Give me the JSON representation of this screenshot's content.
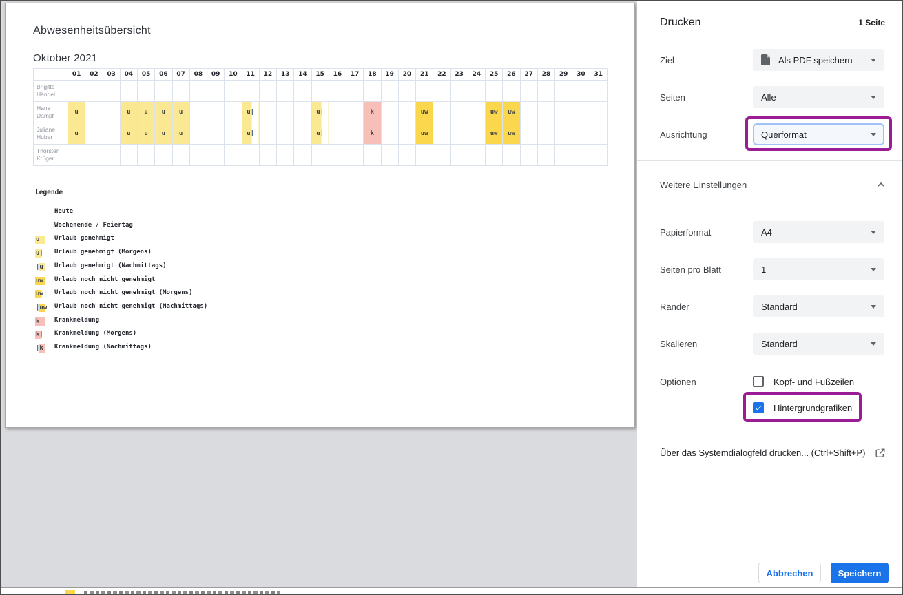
{
  "preview": {
    "title": "Abwesenheitsübersicht",
    "month_title": "Oktober 2021",
    "table": {
      "days": [
        "01",
        "02",
        "03",
        "04",
        "05",
        "06",
        "07",
        "08",
        "09",
        "10",
        "11",
        "12",
        "13",
        "14",
        "15",
        "16",
        "17",
        "18",
        "19",
        "20",
        "21",
        "22",
        "23",
        "24",
        "25",
        "26",
        "27",
        "28",
        "29",
        "30",
        "31"
      ],
      "rows": [
        {
          "name": "Brigitte Händel",
          "cells": {}
        },
        {
          "name": "Hans Dampf",
          "cells": {
            "01": {
              "mark": "u",
              "kind": "u",
              "fill": "full"
            },
            "04": {
              "mark": "u",
              "kind": "u",
              "fill": "full"
            },
            "05": {
              "mark": "u",
              "kind": "u",
              "fill": "full"
            },
            "06": {
              "mark": "u",
              "kind": "u",
              "fill": "full"
            },
            "07": {
              "mark": "u",
              "kind": "u",
              "fill": "full"
            },
            "11": {
              "mark": "u|",
              "kind": "u",
              "fill": "left"
            },
            "15": {
              "mark": "u|",
              "kind": "u",
              "fill": "left"
            },
            "18": {
              "mark": "k",
              "kind": "k",
              "fill": "full"
            },
            "21": {
              "mark": "uw",
              "kind": "uw",
              "fill": "full"
            },
            "25": {
              "mark": "uw",
              "kind": "uw",
              "fill": "full"
            },
            "26": {
              "mark": "uw",
              "kind": "uw",
              "fill": "full"
            }
          }
        },
        {
          "name": "Juliane Huber",
          "cells": {
            "01": {
              "mark": "u",
              "kind": "u",
              "fill": "full"
            },
            "04": {
              "mark": "u",
              "kind": "u",
              "fill": "full"
            },
            "05": {
              "mark": "u",
              "kind": "u",
              "fill": "full"
            },
            "06": {
              "mark": "u",
              "kind": "u",
              "fill": "full"
            },
            "07": {
              "mark": "u",
              "kind": "u",
              "fill": "full"
            },
            "11": {
              "mark": "u|",
              "kind": "u",
              "fill": "left"
            },
            "15": {
              "mark": "u|",
              "kind": "u",
              "fill": "left"
            },
            "18": {
              "mark": "k",
              "kind": "k",
              "fill": "full"
            },
            "21": {
              "mark": "uw",
              "kind": "uw",
              "fill": "full"
            },
            "25": {
              "mark": "uw",
              "kind": "uw",
              "fill": "full"
            },
            "26": {
              "mark": "uw",
              "kind": "uw",
              "fill": "full"
            }
          }
        },
        {
          "name": "Thorsten Krüger",
          "cells": {}
        }
      ]
    },
    "legend": {
      "title": "Legende",
      "items": [
        {
          "mark": "",
          "kind": "",
          "fill": "none",
          "label": "Heute"
        },
        {
          "mark": "",
          "kind": "",
          "fill": "none",
          "label": "Wochenende / Feiertag"
        },
        {
          "mark": "u",
          "kind": "u",
          "fill": "full",
          "label": "Urlaub genehmigt"
        },
        {
          "mark": "u|",
          "kind": "u",
          "fill": "left",
          "label": "Urlaub genehmigt (Morgens)"
        },
        {
          "mark": "|u",
          "kind": "u",
          "fill": "right",
          "label": "Urlaub genehmigt (Nachmittags)"
        },
        {
          "mark": "uw",
          "kind": "uw",
          "fill": "full",
          "label": "Urlaub noch nicht genehmigt"
        },
        {
          "mark": "uw|",
          "kind": "uw",
          "fill": "left",
          "label": "Urlaub noch nicht genehmigt (Morgens)"
        },
        {
          "mark": "|uw",
          "kind": "uw",
          "fill": "right",
          "label": "Urlaub noch nicht genehmigt (Nachmittags)"
        },
        {
          "mark": "k",
          "kind": "k",
          "fill": "full",
          "label": "Krankmeldung"
        },
        {
          "mark": "k|",
          "kind": "k",
          "fill": "left",
          "label": "Krankmeldung (Morgens)"
        },
        {
          "mark": "|k",
          "kind": "k",
          "fill": "right",
          "label": "Krankmeldung (Nachmittags)"
        }
      ]
    }
  },
  "print_panel": {
    "title": "Drucken",
    "page_count": "1 Seite",
    "fields": [
      {
        "label": "Ziel",
        "value": "Als PDF speichern"
      },
      {
        "label": "Seiten",
        "value": "Alle"
      },
      {
        "label": "Ausrichtung",
        "value": "Querformat"
      }
    ],
    "more_settings_label": "Weitere Einstellungen",
    "more_fields": [
      {
        "label": "Papierformat",
        "value": "A4"
      },
      {
        "label": "Seiten pro Blatt",
        "value": "1"
      },
      {
        "label": "Ränder",
        "value": "Standard"
      },
      {
        "label": "Skalieren",
        "value": "Standard"
      }
    ],
    "options": {
      "label": "Optionen",
      "checkboxes": [
        {
          "label": "Kopf- und Fußzeilen",
          "checked": false
        },
        {
          "label": "Hintergrundgrafiken",
          "checked": true
        }
      ]
    },
    "system_dialog_link": "Über das Systemdialogfeld drucken... (Ctrl+Shift+P)",
    "buttons": {
      "cancel": "Abbrechen",
      "save": "Speichern"
    }
  },
  "colors": {
    "marks": {
      "u": "#fae992",
      "uw": "#fbd74e",
      "k": "#f8bfb8"
    },
    "accent_blue": "#1a73e8",
    "annotation_purple": "#9a1d96"
  }
}
